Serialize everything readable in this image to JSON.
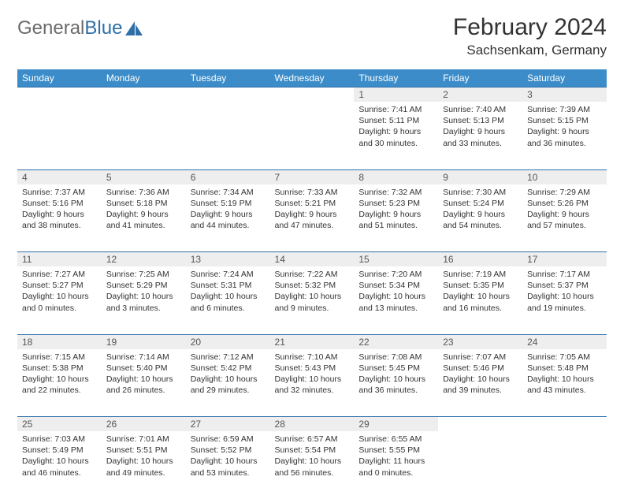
{
  "brand": {
    "part1": "General",
    "part2": "Blue"
  },
  "title": "February 2024",
  "location": "Sachsenkam, Germany",
  "colors": {
    "header_bg": "#3b8cc8",
    "header_text": "#ffffff",
    "border": "#2f6fa8",
    "daynum_bg": "#eeeeee",
    "logo_gray": "#6b6b6b",
    "logo_blue": "#2f6fa8"
  },
  "weekdays": [
    "Sunday",
    "Monday",
    "Tuesday",
    "Wednesday",
    "Thursday",
    "Friday",
    "Saturday"
  ],
  "weeks": [
    [
      null,
      null,
      null,
      null,
      {
        "d": "1",
        "sr": "7:41 AM",
        "ss": "5:11 PM",
        "dl": "9 hours and 30 minutes."
      },
      {
        "d": "2",
        "sr": "7:40 AM",
        "ss": "5:13 PM",
        "dl": "9 hours and 33 minutes."
      },
      {
        "d": "3",
        "sr": "7:39 AM",
        "ss": "5:15 PM",
        "dl": "9 hours and 36 minutes."
      }
    ],
    [
      {
        "d": "4",
        "sr": "7:37 AM",
        "ss": "5:16 PM",
        "dl": "9 hours and 38 minutes."
      },
      {
        "d": "5",
        "sr": "7:36 AM",
        "ss": "5:18 PM",
        "dl": "9 hours and 41 minutes."
      },
      {
        "d": "6",
        "sr": "7:34 AM",
        "ss": "5:19 PM",
        "dl": "9 hours and 44 minutes."
      },
      {
        "d": "7",
        "sr": "7:33 AM",
        "ss": "5:21 PM",
        "dl": "9 hours and 47 minutes."
      },
      {
        "d": "8",
        "sr": "7:32 AM",
        "ss": "5:23 PM",
        "dl": "9 hours and 51 minutes."
      },
      {
        "d": "9",
        "sr": "7:30 AM",
        "ss": "5:24 PM",
        "dl": "9 hours and 54 minutes."
      },
      {
        "d": "10",
        "sr": "7:29 AM",
        "ss": "5:26 PM",
        "dl": "9 hours and 57 minutes."
      }
    ],
    [
      {
        "d": "11",
        "sr": "7:27 AM",
        "ss": "5:27 PM",
        "dl": "10 hours and 0 minutes."
      },
      {
        "d": "12",
        "sr": "7:25 AM",
        "ss": "5:29 PM",
        "dl": "10 hours and 3 minutes."
      },
      {
        "d": "13",
        "sr": "7:24 AM",
        "ss": "5:31 PM",
        "dl": "10 hours and 6 minutes."
      },
      {
        "d": "14",
        "sr": "7:22 AM",
        "ss": "5:32 PM",
        "dl": "10 hours and 9 minutes."
      },
      {
        "d": "15",
        "sr": "7:20 AM",
        "ss": "5:34 PM",
        "dl": "10 hours and 13 minutes."
      },
      {
        "d": "16",
        "sr": "7:19 AM",
        "ss": "5:35 PM",
        "dl": "10 hours and 16 minutes."
      },
      {
        "d": "17",
        "sr": "7:17 AM",
        "ss": "5:37 PM",
        "dl": "10 hours and 19 minutes."
      }
    ],
    [
      {
        "d": "18",
        "sr": "7:15 AM",
        "ss": "5:38 PM",
        "dl": "10 hours and 22 minutes."
      },
      {
        "d": "19",
        "sr": "7:14 AM",
        "ss": "5:40 PM",
        "dl": "10 hours and 26 minutes."
      },
      {
        "d": "20",
        "sr": "7:12 AM",
        "ss": "5:42 PM",
        "dl": "10 hours and 29 minutes."
      },
      {
        "d": "21",
        "sr": "7:10 AM",
        "ss": "5:43 PM",
        "dl": "10 hours and 32 minutes."
      },
      {
        "d": "22",
        "sr": "7:08 AM",
        "ss": "5:45 PM",
        "dl": "10 hours and 36 minutes."
      },
      {
        "d": "23",
        "sr": "7:07 AM",
        "ss": "5:46 PM",
        "dl": "10 hours and 39 minutes."
      },
      {
        "d": "24",
        "sr": "7:05 AM",
        "ss": "5:48 PM",
        "dl": "10 hours and 43 minutes."
      }
    ],
    [
      {
        "d": "25",
        "sr": "7:03 AM",
        "ss": "5:49 PM",
        "dl": "10 hours and 46 minutes."
      },
      {
        "d": "26",
        "sr": "7:01 AM",
        "ss": "5:51 PM",
        "dl": "10 hours and 49 minutes."
      },
      {
        "d": "27",
        "sr": "6:59 AM",
        "ss": "5:52 PM",
        "dl": "10 hours and 53 minutes."
      },
      {
        "d": "28",
        "sr": "6:57 AM",
        "ss": "5:54 PM",
        "dl": "10 hours and 56 minutes."
      },
      {
        "d": "29",
        "sr": "6:55 AM",
        "ss": "5:55 PM",
        "dl": "11 hours and 0 minutes."
      },
      null,
      null
    ]
  ],
  "labels": {
    "sunrise": "Sunrise:",
    "sunset": "Sunset:",
    "daylight": "Daylight:"
  }
}
